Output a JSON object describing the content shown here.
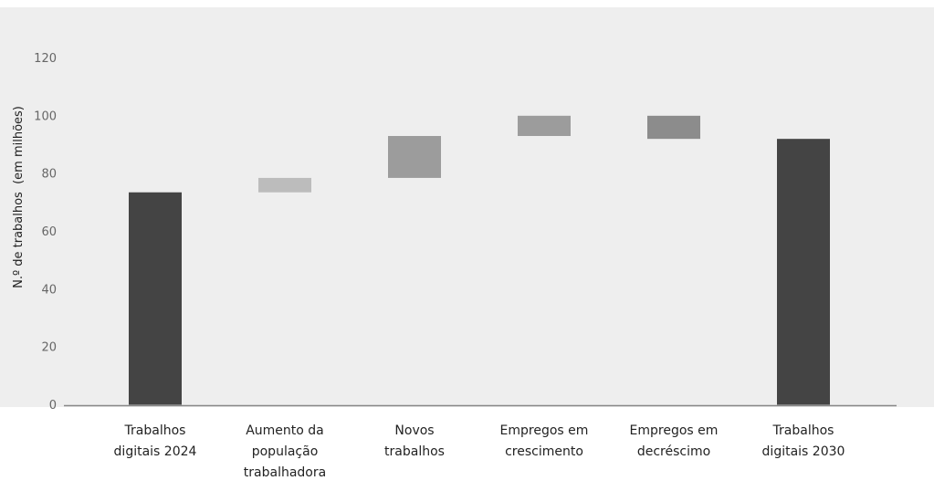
{
  "chart_data": {
    "type": "bar",
    "subtype": "waterfall",
    "ylabel": "N.º de trabalhos  (em milhões)",
    "xlabel": "",
    "ylim": [
      0,
      130
    ],
    "yticks": [
      "0",
      "20",
      "40",
      "60",
      "80",
      "100",
      "120"
    ],
    "categories": [
      [
        "Trabalhos",
        "digitais 2024"
      ],
      [
        "Aumento da",
        "população",
        "trabalhadora"
      ],
      [
        "Novos",
        "trabalhos"
      ],
      [
        "Empregos em",
        "crescimento"
      ],
      [
        "Empregos em",
        "decréscimo"
      ],
      [
        "Trabalhos",
        "digitais 2030"
      ]
    ],
    "bars": [
      {
        "start": 0,
        "end": 73.5,
        "kind": "total"
      },
      {
        "start": 73.5,
        "end": 78.5,
        "kind": "delta"
      },
      {
        "start": 78.5,
        "end": 93,
        "kind": "delta"
      },
      {
        "start": 93,
        "end": 100,
        "kind": "delta"
      },
      {
        "start": 100,
        "end": 92,
        "kind": "delta"
      },
      {
        "start": 0,
        "end": 92,
        "kind": "total"
      }
    ],
    "colors": {
      "plot_background": "#eeeeee",
      "axis": "#888888",
      "bars": [
        "#444444",
        "#bcbcbc",
        "#9c9c9c",
        "#9c9c9c",
        "#8c8c8c",
        "#444444"
      ]
    },
    "grid": false,
    "legend": "none"
  }
}
